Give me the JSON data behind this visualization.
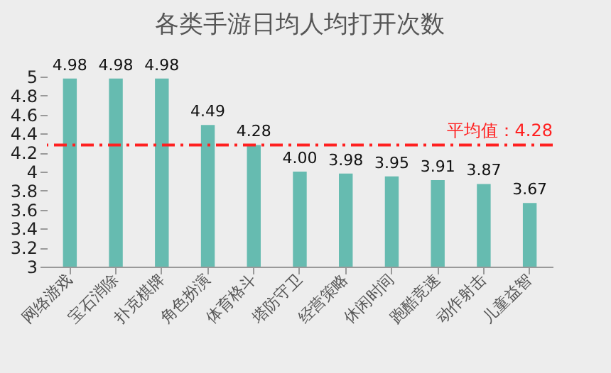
{
  "chart_data": {
    "type": "bar",
    "title": "各类手游日均人均打开次数",
    "categories": [
      "网络游戏",
      "宝石消除",
      "扑克棋牌",
      "角色扮演",
      "体育格斗",
      "塔防守卫",
      "经营策略",
      "休闲时间",
      "跑酷竞速",
      "动作射击",
      "儿童益智"
    ],
    "values": [
      4.98,
      4.98,
      4.98,
      4.49,
      4.28,
      4.0,
      3.98,
      3.95,
      3.91,
      3.87,
      3.67
    ],
    "value_labels": [
      "4.98",
      "4.98",
      "4.98",
      "4.49",
      "4.28",
      "4.00",
      "3.98",
      "3.95",
      "3.91",
      "3.87",
      "3.67"
    ],
    "color": "#66bbb0",
    "ylim": [
      3,
      5
    ],
    "yticks": [
      3,
      3.2,
      3.4,
      3.6,
      3.8,
      4,
      4.2,
      4.4,
      4.6,
      4.8,
      5
    ],
    "ref_lines": [
      {
        "axis": "y",
        "value": 4.28,
        "label": "平均值：4.28",
        "color": "#ff2020",
        "line_style": "dashdot"
      }
    ],
    "grid": false
  }
}
